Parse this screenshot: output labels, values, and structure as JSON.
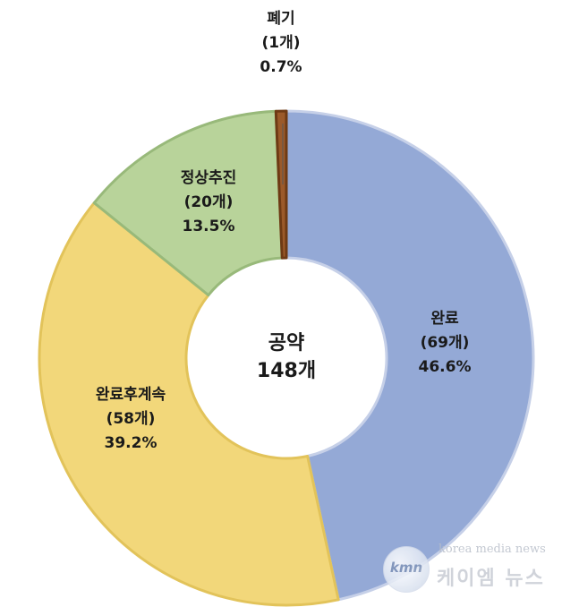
{
  "chart_data": {
    "type": "pie",
    "style": "donut",
    "title": "",
    "center_label": {
      "line1": "공약",
      "line2": "148개"
    },
    "total": 148,
    "slices": [
      {
        "name": "완료",
        "count_text": "(69개)",
        "percent_text": "46.6%",
        "value": 69,
        "color": "#94a9d6",
        "edge": "#c6d0e8"
      },
      {
        "name": "완료후계속",
        "count_text": "(58개)",
        "percent_text": "39.2%",
        "value": 58,
        "color": "#f2d77a",
        "edge": "#e2c35a"
      },
      {
        "name": "정상추진",
        "count_text": "(20개)",
        "percent_text": "13.5%",
        "value": 20,
        "color": "#b8d39a",
        "edge": "#98b97a"
      },
      {
        "name": "폐기",
        "count_text": "(1개)",
        "percent_text": "0.7%",
        "value": 1,
        "color": "#9b5a2a",
        "edge": "#6e3a14"
      }
    ]
  },
  "watermark": {
    "logo_text": "kmn",
    "en_text": "korea media news",
    "ko_text": "케이엠 뉴스"
  }
}
